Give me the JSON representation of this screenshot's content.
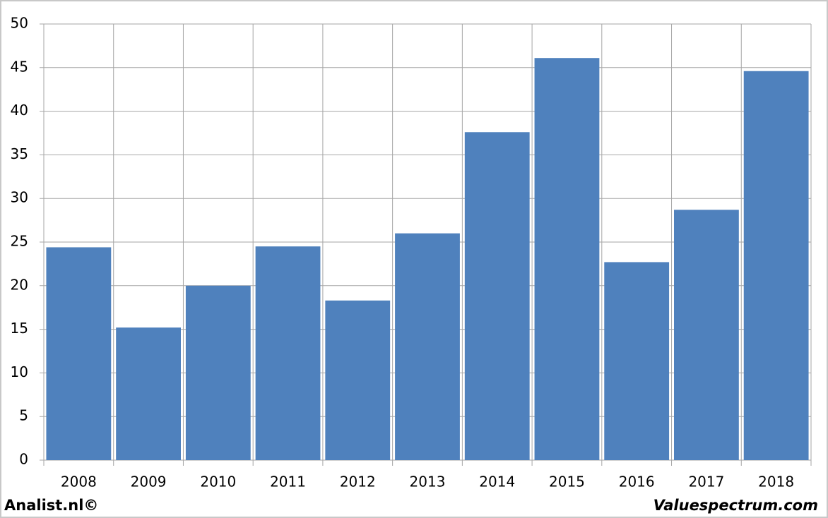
{
  "chart_data": {
    "type": "bar",
    "categories": [
      "2008",
      "2009",
      "2010",
      "2011",
      "2012",
      "2013",
      "2014",
      "2015",
      "2016",
      "2017",
      "2018"
    ],
    "values": [
      24.4,
      15.2,
      20,
      24.5,
      18.3,
      26,
      37.6,
      46.1,
      22.7,
      28.7,
      44.6
    ],
    "color": "#4f81bd",
    "ylim": [
      0,
      50
    ],
    "yticks": [
      0,
      5,
      10,
      15,
      20,
      25,
      30,
      35,
      40,
      45,
      50
    ],
    "grid": true,
    "footer_left": "Analist.nl©",
    "footer_right": "Valuespectrum.com"
  }
}
